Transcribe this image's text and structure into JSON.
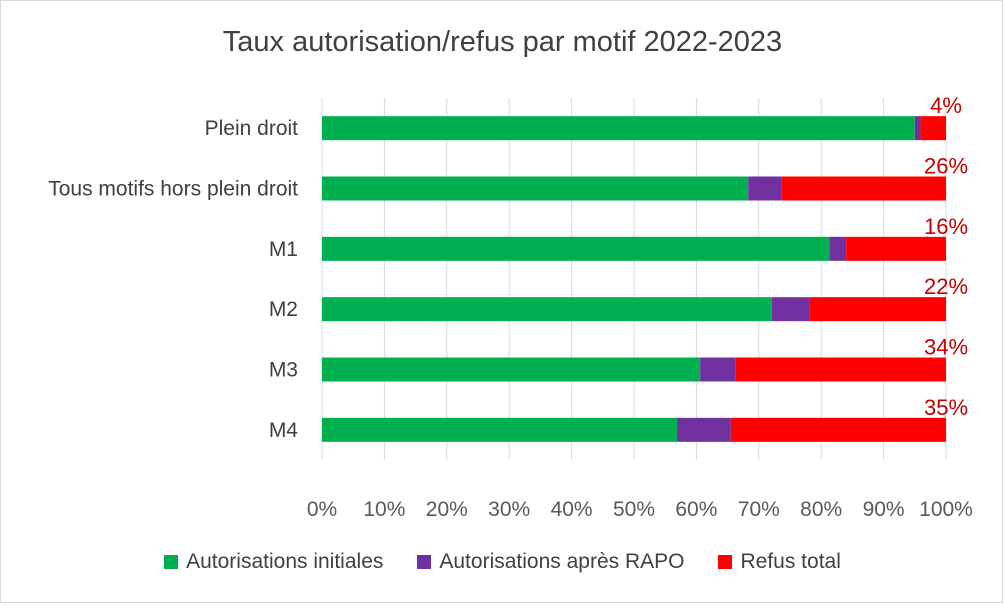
{
  "chart_data": {
    "type": "bar",
    "orientation": "horizontal",
    "stacked": true,
    "title": "Taux autorisation/refus par motif 2022-2023",
    "categories": [
      "Plein droit",
      "Tous motifs hors plein droit",
      "M1",
      "M2",
      "M3",
      "M4"
    ],
    "series": [
      {
        "name": "Autorisations initiales",
        "color": "#00b050",
        "values": [
          95.0,
          68.3,
          81.3,
          72.1,
          60.6,
          56.9
        ]
      },
      {
        "name": "Autorisations après RAPO",
        "color": "#7030a0",
        "values": [
          0.9,
          5.3,
          2.7,
          6.0,
          5.7,
          8.6
        ]
      },
      {
        "name": "Refus total",
        "color": "#ff0000",
        "values": [
          4.1,
          26.4,
          16.0,
          21.9,
          33.7,
          34.5
        ]
      }
    ],
    "data_labels": [
      "4%",
      "26%",
      "16%",
      "22%",
      "34%",
      "35%"
    ],
    "xlim": [
      0,
      100
    ],
    "x_ticks": [
      "0%",
      "10%",
      "20%",
      "30%",
      "40%",
      "50%",
      "60%",
      "70%",
      "80%",
      "90%",
      "100%"
    ],
    "grid": "vertical",
    "legend_position": "bottom"
  }
}
